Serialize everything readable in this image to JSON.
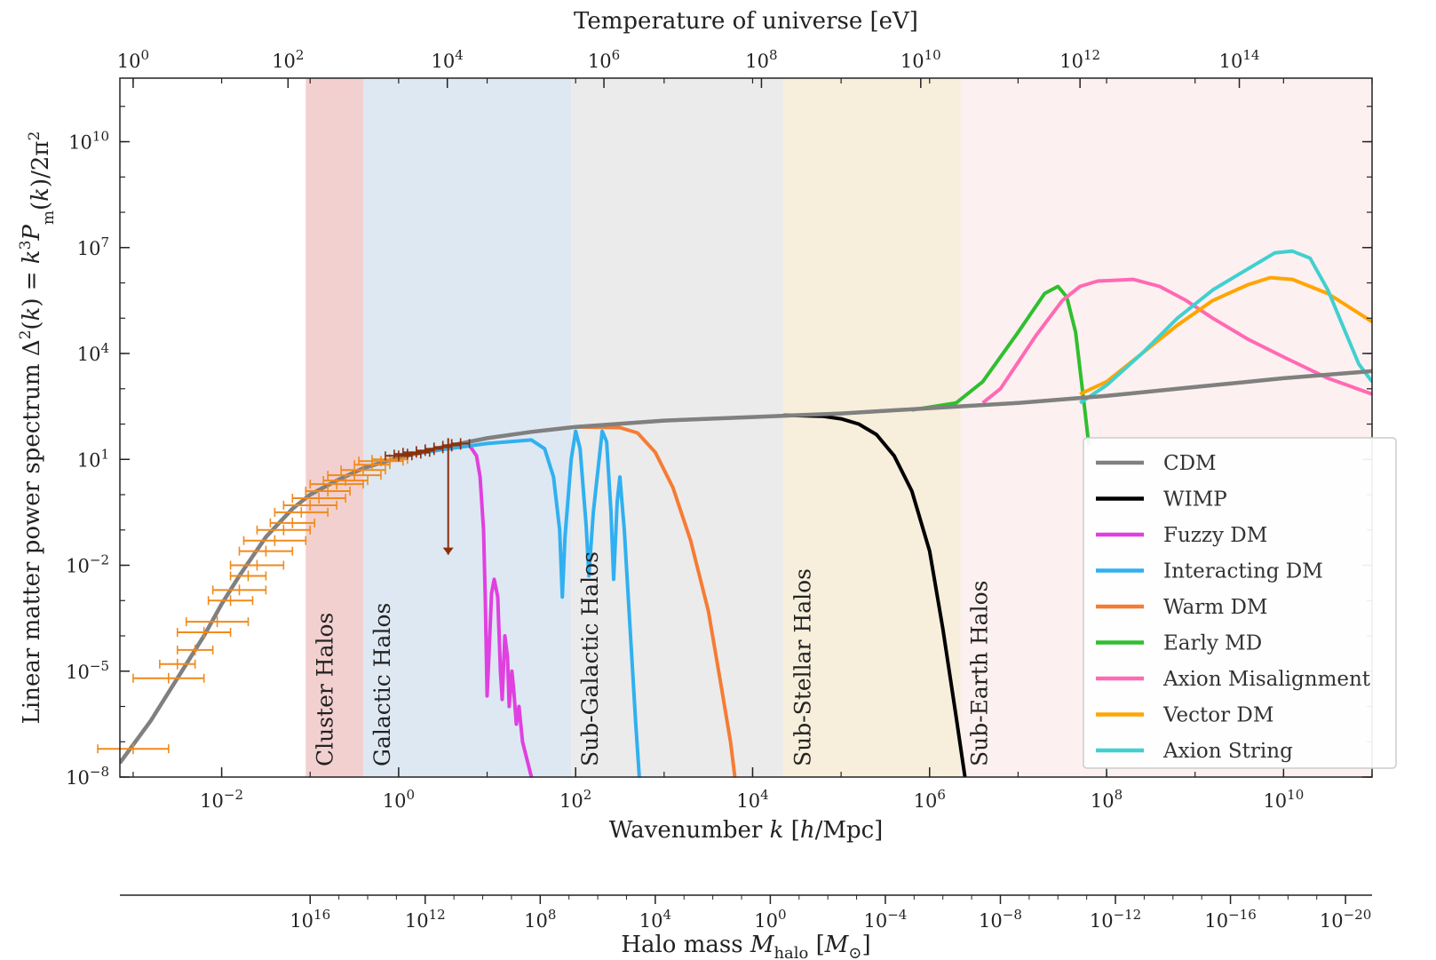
{
  "chart_data": {
    "type": "line",
    "xaxis": {
      "label_plain": "Wavenumber k  [h/Mpc]",
      "scale": "log",
      "range_log10": [
        -3.15,
        11.0
      ],
      "tick_exponents": [
        -2,
        0,
        2,
        4,
        6,
        8,
        10
      ]
    },
    "yaxis": {
      "label_plain": "Linear matter power spectrum Δ²(k) = k³P_m(k)/2π²",
      "scale": "log",
      "range_log10": [
        -8,
        11.8
      ],
      "tick_exponents": [
        -8,
        -5,
        -2,
        1,
        4,
        7,
        10
      ]
    },
    "top_axis": {
      "label": "Temperature of universe [eV]",
      "scale": "log",
      "tick_exponents": [
        0,
        2,
        4,
        6,
        8,
        10,
        12,
        14
      ],
      "tick_positions_k_log10": [
        -3.0,
        -1.25,
        0.55,
        2.32,
        4.1,
        5.9,
        7.7,
        9.5
      ]
    },
    "bottom_axis": {
      "label_plain": "Halo mass M_halo [M_⊙]",
      "scale": "log",
      "tick_exponents": [
        16,
        12,
        8,
        4,
        0,
        -4,
        -8,
        -12,
        -16,
        -20
      ],
      "tick_positions_k_log10": [
        -1.0,
        0.3,
        1.6,
        2.9,
        4.2,
        5.5,
        6.8,
        8.1,
        9.4,
        10.7
      ]
    },
    "regions": [
      {
        "name": "Cluster Halos",
        "k_log10": [
          -1.05,
          -0.4
        ],
        "color": "#f3d0d0"
      },
      {
        "name": "Galactic Halos",
        "k_log10": [
          -0.4,
          1.95
        ],
        "color": "#dde8f2"
      },
      {
        "name": "Sub-Galactic Halos",
        "k_log10": [
          1.95,
          4.35
        ],
        "color": "#ebebeb"
      },
      {
        "name": "Sub-Stellar Halos",
        "k_log10": [
          4.35,
          6.35
        ],
        "color": "#f7eedb"
      },
      {
        "name": "Sub-Earth Halos",
        "k_log10": [
          6.35,
          11.0
        ],
        "color": "#fdf0f0"
      }
    ],
    "series": [
      {
        "name": "CDM",
        "color": "#808080",
        "points": [
          [
            -3.15,
            -7.6
          ],
          [
            -2.8,
            -6.4
          ],
          [
            -2.5,
            -5.2
          ],
          [
            -2.2,
            -4.0
          ],
          [
            -2.0,
            -3.1
          ],
          [
            -1.8,
            -2.3
          ],
          [
            -1.5,
            -1.2
          ],
          [
            -1.2,
            -0.4
          ],
          [
            -1.0,
            0.0
          ],
          [
            -0.7,
            0.4
          ],
          [
            -0.4,
            0.75
          ],
          [
            0.0,
            1.05
          ],
          [
            0.5,
            1.35
          ],
          [
            1.0,
            1.6
          ],
          [
            1.5,
            1.78
          ],
          [
            2.0,
            1.92
          ],
          [
            3.0,
            2.1
          ],
          [
            4.0,
            2.2
          ],
          [
            5.0,
            2.3
          ],
          [
            6.0,
            2.45
          ],
          [
            7.0,
            2.6
          ],
          [
            8.0,
            2.8
          ],
          [
            9.0,
            3.05
          ],
          [
            10.0,
            3.3
          ],
          [
            11.0,
            3.5
          ]
        ]
      },
      {
        "name": "WIMP",
        "color": "#000000",
        "points": [
          [
            4.35,
            2.25
          ],
          [
            4.8,
            2.22
          ],
          [
            5.0,
            2.15
          ],
          [
            5.2,
            2.0
          ],
          [
            5.4,
            1.7
          ],
          [
            5.6,
            1.1
          ],
          [
            5.8,
            0.1
          ],
          [
            6.0,
            -1.6
          ],
          [
            6.15,
            -3.8
          ],
          [
            6.3,
            -6.3
          ],
          [
            6.4,
            -8.0
          ]
        ]
      },
      {
        "name": "Fuzzy DM",
        "color": "#e040e0",
        "points": [
          [
            0.7,
            1.45
          ],
          [
            0.8,
            1.4
          ],
          [
            0.88,
            1.1
          ],
          [
            0.92,
            0.5
          ],
          [
            0.96,
            -1.0
          ],
          [
            0.98,
            -3.0
          ],
          [
            1.0,
            -5.7
          ],
          [
            1.02,
            -4.6
          ],
          [
            1.05,
            -2.8
          ],
          [
            1.08,
            -2.4
          ],
          [
            1.12,
            -2.9
          ],
          [
            1.15,
            -5.0
          ],
          [
            1.17,
            -5.8
          ],
          [
            1.2,
            -4.0
          ],
          [
            1.23,
            -4.6
          ],
          [
            1.25,
            -6.0
          ],
          [
            1.28,
            -5.0
          ],
          [
            1.3,
            -5.5
          ],
          [
            1.33,
            -6.5
          ],
          [
            1.36,
            -6.0
          ],
          [
            1.4,
            -7.0
          ],
          [
            1.45,
            -7.5
          ],
          [
            1.5,
            -8.0
          ]
        ]
      },
      {
        "name": "Interacting DM",
        "color": "#30b0f0",
        "points": [
          [
            0.0,
            1.08
          ],
          [
            0.5,
            1.28
          ],
          [
            1.0,
            1.45
          ],
          [
            1.5,
            1.55
          ],
          [
            1.65,
            1.3
          ],
          [
            1.75,
            0.5
          ],
          [
            1.82,
            -1.0
          ],
          [
            1.85,
            -2.9
          ],
          [
            1.88,
            -1.2
          ],
          [
            1.95,
            1.0
          ],
          [
            2.0,
            1.8
          ],
          [
            2.05,
            1.3
          ],
          [
            2.12,
            -0.9
          ],
          [
            2.15,
            -2.3
          ],
          [
            2.2,
            -0.5
          ],
          [
            2.3,
            1.8
          ],
          [
            2.35,
            1.5
          ],
          [
            2.4,
            -0.5
          ],
          [
            2.43,
            -2.4
          ],
          [
            2.47,
            -0.2
          ],
          [
            2.5,
            0.5
          ],
          [
            2.55,
            -1.0
          ],
          [
            2.62,
            -4.0
          ],
          [
            2.68,
            -6.5
          ],
          [
            2.72,
            -8.0
          ]
        ]
      },
      {
        "name": "Warm DM",
        "color": "#f57c35",
        "points": [
          [
            2.0,
            1.92
          ],
          [
            2.5,
            1.9
          ],
          [
            2.7,
            1.75
          ],
          [
            2.9,
            1.2
          ],
          [
            3.1,
            0.2
          ],
          [
            3.3,
            -1.3
          ],
          [
            3.5,
            -3.3
          ],
          [
            3.65,
            -5.5
          ],
          [
            3.75,
            -7.0
          ],
          [
            3.8,
            -8.0
          ]
        ]
      },
      {
        "name": "Early MD",
        "color": "#2fbf2f",
        "points": [
          [
            5.8,
            2.4
          ],
          [
            6.3,
            2.6
          ],
          [
            6.6,
            3.2
          ],
          [
            7.0,
            4.6
          ],
          [
            7.3,
            5.7
          ],
          [
            7.45,
            5.9
          ],
          [
            7.55,
            5.6
          ],
          [
            7.65,
            4.6
          ],
          [
            7.75,
            2.5
          ],
          [
            7.8,
            1.4
          ]
        ]
      },
      {
        "name": "Axion Misalignment",
        "color": "#ff69b4",
        "points": [
          [
            6.6,
            2.6
          ],
          [
            6.8,
            3.0
          ],
          [
            7.2,
            4.5
          ],
          [
            7.5,
            5.5
          ],
          [
            7.7,
            5.9
          ],
          [
            7.9,
            6.05
          ],
          [
            8.3,
            6.1
          ],
          [
            8.6,
            5.9
          ],
          [
            8.9,
            5.5
          ],
          [
            9.2,
            5.0
          ],
          [
            9.6,
            4.4
          ],
          [
            10.0,
            3.9
          ],
          [
            10.5,
            3.3
          ],
          [
            11.0,
            2.85
          ]
        ]
      },
      {
        "name": "Vector DM",
        "color": "#ffa500",
        "points": [
          [
            7.7,
            2.85
          ],
          [
            8.0,
            3.2
          ],
          [
            8.4,
            4.0
          ],
          [
            8.8,
            4.8
          ],
          [
            9.2,
            5.5
          ],
          [
            9.6,
            5.95
          ],
          [
            9.85,
            6.15
          ],
          [
            10.1,
            6.1
          ],
          [
            10.5,
            5.7
          ],
          [
            11.0,
            4.9
          ]
        ]
      },
      {
        "name": "Axion String",
        "color": "#40d0d0",
        "points": [
          [
            7.7,
            2.6
          ],
          [
            8.0,
            3.1
          ],
          [
            8.4,
            4.0
          ],
          [
            8.8,
            5.0
          ],
          [
            9.2,
            5.8
          ],
          [
            9.6,
            6.4
          ],
          [
            9.9,
            6.85
          ],
          [
            10.1,
            6.9
          ],
          [
            10.3,
            6.7
          ],
          [
            10.5,
            5.8
          ],
          [
            10.7,
            4.6
          ],
          [
            10.85,
            3.7
          ],
          [
            11.0,
            3.2
          ]
        ]
      }
    ],
    "data_points_orange": [
      [
        -3.0,
        -7.2,
        0.4
      ],
      [
        -2.6,
        -5.2,
        0.4
      ],
      [
        -2.5,
        -4.8,
        0.2
      ],
      [
        -2.3,
        -4.4,
        0.2
      ],
      [
        -2.2,
        -3.9,
        0.3
      ],
      [
        -2.05,
        -3.6,
        0.35
      ],
      [
        -1.9,
        -3.0,
        0.25
      ],
      [
        -1.8,
        -2.7,
        0.3
      ],
      [
        -1.7,
        -2.3,
        0.2
      ],
      [
        -1.6,
        -2.0,
        0.3
      ],
      [
        -1.5,
        -1.6,
        0.3
      ],
      [
        -1.4,
        -1.3,
        0.35
      ],
      [
        -1.3,
        -1.0,
        0.3
      ],
      [
        -1.2,
        -0.8,
        0.25
      ],
      [
        -1.1,
        -0.5,
        0.3
      ],
      [
        -1.0,
        -0.3,
        0.3
      ],
      [
        -0.9,
        -0.1,
        0.3
      ],
      [
        -0.8,
        0.1,
        0.25
      ],
      [
        -0.7,
        0.3,
        0.3
      ],
      [
        -0.6,
        0.4,
        0.25
      ],
      [
        -0.5,
        0.55,
        0.3
      ],
      [
        -0.4,
        0.7,
        0.25
      ],
      [
        -0.3,
        0.85,
        0.2
      ],
      [
        -0.2,
        0.95,
        0.25
      ],
      [
        -0.1,
        1.0,
        0.2
      ]
    ],
    "data_points_brown": [
      [
        0.0,
        1.1,
        0.15
      ],
      [
        0.1,
        1.15,
        0.15
      ],
      [
        0.2,
        1.2,
        0.15
      ],
      [
        0.3,
        1.25,
        0.1
      ],
      [
        0.4,
        1.3,
        0.1
      ],
      [
        0.5,
        1.35,
        0.1
      ],
      [
        0.6,
        1.4,
        0.1
      ],
      [
        0.7,
        1.45,
        0.1
      ]
    ],
    "upper_limit_arrow": {
      "k_log10": 0.56,
      "y_from_log10": 1.6,
      "y_to_log10": -1.7
    }
  }
}
